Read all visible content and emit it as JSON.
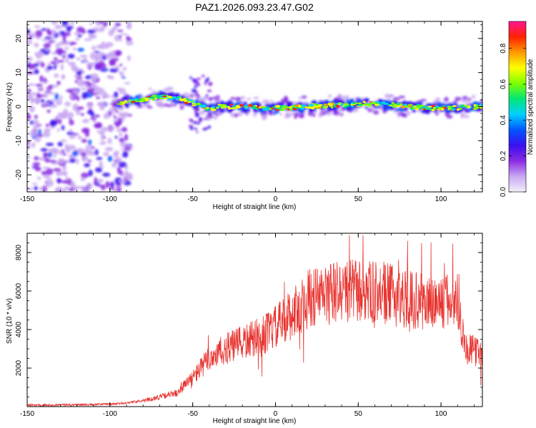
{
  "title": "PAZ1.2026.093.23.47.G02",
  "colors": {
    "axis": "#000000",
    "snr_line": "#e8332f",
    "background": "#ffffff"
  },
  "chart_data": [
    {
      "type": "heatmap",
      "name": "spectrogram",
      "xlabel": "Height of straight line (km)",
      "ylabel": "Frequency (Hz)",
      "xlim": [
        -150,
        125
      ],
      "ylim": [
        -25,
        25
      ],
      "xticks": [
        "-150",
        "-100",
        "-50",
        "0",
        "50",
        "100"
      ],
      "yticks": [
        "-20",
        "-10",
        "0",
        "10",
        "20"
      ],
      "xtick_values": [
        -150,
        -100,
        -50,
        0,
        50,
        100
      ],
      "ytick_values": [
        -20,
        -10,
        0,
        10,
        20
      ],
      "colorbar": {
        "label": "Normalized spectral amplitude",
        "range": [
          0.0,
          0.95
        ],
        "ticks": [
          "0.0",
          "0.2",
          "0.4",
          "0.6",
          "0.8"
        ],
        "tick_values": [
          0.0,
          0.2,
          0.4,
          0.6,
          0.8
        ],
        "colormap": [
          "#f4f0fb",
          "#c9a8f2",
          "#8a2be2",
          "#3a10f0",
          "#0055ff",
          "#00d0ff",
          "#00e676",
          "#7cff00",
          "#ffff00",
          "#ff9900",
          "#ff2200",
          "#ff1493"
        ]
      },
      "ridge": {
        "description": "narrow high-amplitude band near 0 Hz from about -90 km to 125 km",
        "points": [
          [
            -95,
            1
          ],
          [
            -80,
            2
          ],
          [
            -70,
            3
          ],
          [
            -60,
            2.5
          ],
          [
            -52,
            1.5
          ],
          [
            -45,
            0
          ],
          [
            -40,
            -1
          ],
          [
            -35,
            0
          ],
          [
            -20,
            0
          ],
          [
            0,
            -0.5
          ],
          [
            20,
            0
          ],
          [
            40,
            0.5
          ],
          [
            60,
            1
          ],
          [
            80,
            0
          ],
          [
            100,
            -0.5
          ],
          [
            125,
            0
          ]
        ]
      },
      "noise_region": [
        -150,
        -88
      ]
    },
    {
      "type": "line",
      "name": "snr",
      "xlabel": "Height of straight line (km)",
      "ylabel": "SNR (10 * v/v)",
      "xlim": [
        -150,
        125
      ],
      "ylim": [
        0,
        9000
      ],
      "xticks": [
        "-150",
        "-100",
        "-50",
        "0",
        "50",
        "100"
      ],
      "yticks": [
        "2000",
        "4000",
        "6000",
        "8000"
      ],
      "xtick_values": [
        -150,
        -100,
        -50,
        0,
        50,
        100
      ],
      "ytick_values": [
        2000,
        4000,
        6000,
        8000
      ],
      "envelope": {
        "x": [
          -150,
          -110,
          -95,
          -80,
          -70,
          -60,
          -50,
          -40,
          -30,
          -20,
          -10,
          0,
          10,
          20,
          30,
          40,
          50,
          60,
          70,
          80,
          90,
          100,
          110,
          115,
          125
        ],
        "y": [
          80,
          100,
          150,
          300,
          500,
          700,
          1500,
          2500,
          3000,
          3300,
          3600,
          4100,
          4800,
          5600,
          5800,
          6000,
          6000,
          5900,
          5800,
          5600,
          5400,
          5400,
          5500,
          3000,
          2800
        ]
      }
    }
  ]
}
